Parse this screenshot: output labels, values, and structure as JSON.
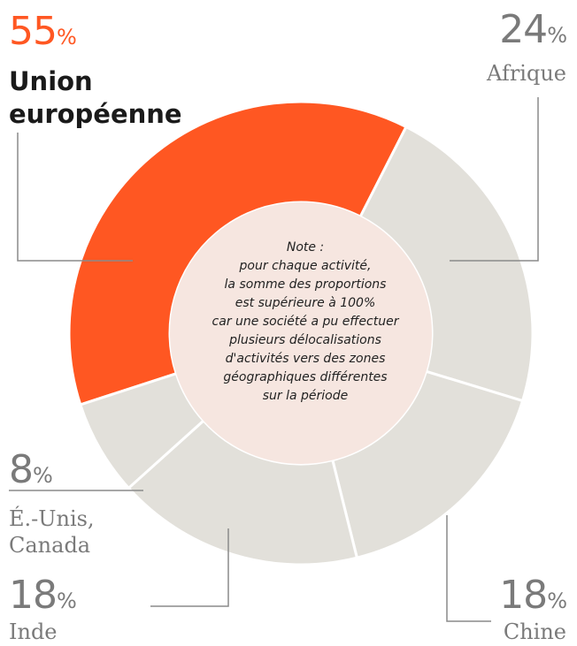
{
  "chart_data": {
    "type": "donut",
    "slices": [
      {
        "label_lines": [
          "Union",
          "européenne"
        ],
        "value": 55,
        "pct_text": "55",
        "unit": "%",
        "color": "#ff5722"
      },
      {
        "label_lines": [
          "Afrique"
        ],
        "value": 24,
        "pct_text": "24",
        "unit": "%",
        "color": "#e2e0da"
      },
      {
        "label_lines": [
          "Chine"
        ],
        "value": 18,
        "pct_text": "18",
        "unit": "%",
        "color": "#e2e0da"
      },
      {
        "label_lines": [
          "Inde"
        ],
        "value": 18,
        "pct_text": "18",
        "unit": "%",
        "color": "#e2e0da"
      },
      {
        "label_lines": [
          "É.-Unis,",
          "Canada"
        ],
        "value": 8,
        "pct_text": "8",
        "unit": "%",
        "color": "#e2e0da"
      }
    ],
    "center_note": {
      "title": "Note :",
      "lines": [
        "pour chaque activité,",
        "la somme des proportions",
        "est supérieure à 100%",
        "car une société a pu effectuer",
        "plusieurs délocalisations",
        "d'activités vers des zones",
        "géographiques différentes",
        "sur la période"
      ]
    }
  },
  "colors": {
    "accent": "#ff5722",
    "grey_slice": "#e2e0da",
    "center_fill": "#f6e6e0",
    "muted_text": "#7a7a7a",
    "dark_text": "#1a1a1a",
    "leader_line": "#8a8a8a"
  }
}
